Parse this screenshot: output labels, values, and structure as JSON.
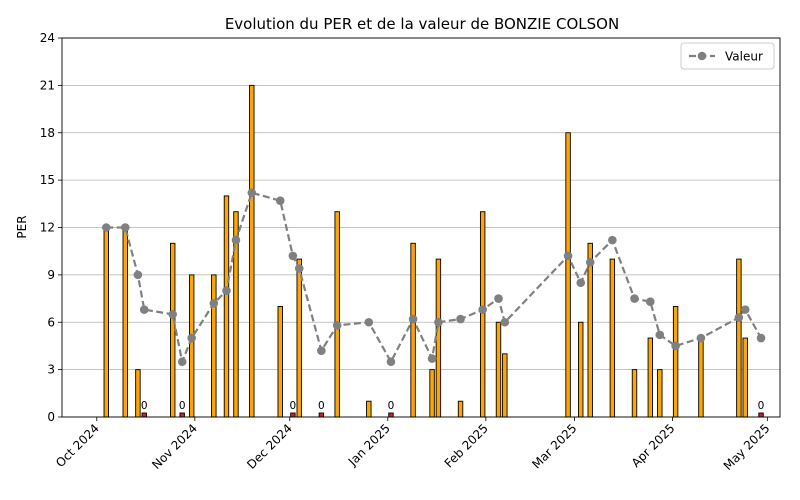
{
  "chart_data": {
    "type": "bar",
    "title": "Evolution du PER et de la valeur de BONZIE COLSON",
    "ylabel": "PER",
    "xlabel": "",
    "ylim": [
      0,
      24
    ],
    "yticks": [
      0,
      3,
      6,
      9,
      12,
      15,
      18,
      21,
      24
    ],
    "xlim": [
      "2024-09-20",
      "2025-05-05"
    ],
    "xticks": [
      {
        "date": "2024-10-01",
        "label": "Oct 2024"
      },
      {
        "date": "2024-11-01",
        "label": "Nov 2024"
      },
      {
        "date": "2024-12-01",
        "label": "Dec 2024"
      },
      {
        "date": "2025-01-01",
        "label": "Jan 2025"
      },
      {
        "date": "2025-02-01",
        "label": "Feb 2025"
      },
      {
        "date": "2025-03-01",
        "label": "Mar 2025"
      },
      {
        "date": "2025-04-01",
        "label": "Apr 2025"
      },
      {
        "date": "2025-05-01",
        "label": "May 2025"
      }
    ],
    "grid": "y",
    "legend_position": "top-right",
    "colors": {
      "bar": "#FFA500",
      "bar_zero": "#CC2222",
      "bar_edge": "#000000",
      "line": "#808080",
      "grid": "#b0b0b0"
    },
    "bars": [
      {
        "date": "2024-10-04",
        "value": 12
      },
      {
        "date": "2024-10-10",
        "value": 12
      },
      {
        "date": "2024-10-14",
        "value": 3
      },
      {
        "date": "2024-10-16",
        "value": 0,
        "label": "0"
      },
      {
        "date": "2024-10-25",
        "value": 11
      },
      {
        "date": "2024-10-28",
        "value": 0,
        "label": "0"
      },
      {
        "date": "2024-10-31",
        "value": 9
      },
      {
        "date": "2024-11-07",
        "value": 9
      },
      {
        "date": "2024-11-11",
        "value": 14
      },
      {
        "date": "2024-11-14",
        "value": 13
      },
      {
        "date": "2024-11-19",
        "value": 21
      },
      {
        "date": "2024-11-28",
        "value": 7
      },
      {
        "date": "2024-12-02",
        "value": 0,
        "label": "0"
      },
      {
        "date": "2024-12-04",
        "value": 10
      },
      {
        "date": "2024-12-11",
        "value": 0,
        "label": "0"
      },
      {
        "date": "2024-12-16",
        "value": 13
      },
      {
        "date": "2024-12-26",
        "value": 1
      },
      {
        "date": "2025-01-02",
        "value": 0,
        "label": "0"
      },
      {
        "date": "2025-01-09",
        "value": 11
      },
      {
        "date": "2025-01-15",
        "value": 3
      },
      {
        "date": "2025-01-17",
        "value": 10
      },
      {
        "date": "2025-01-24",
        "value": 1
      },
      {
        "date": "2025-01-31",
        "value": 13
      },
      {
        "date": "2025-02-05",
        "value": 6
      },
      {
        "date": "2025-02-07",
        "value": 4
      },
      {
        "date": "2025-02-27",
        "value": 18
      },
      {
        "date": "2025-03-03",
        "value": 6
      },
      {
        "date": "2025-03-06",
        "value": 11
      },
      {
        "date": "2025-03-13",
        "value": 10
      },
      {
        "date": "2025-03-20",
        "value": 3
      },
      {
        "date": "2025-03-25",
        "value": 5
      },
      {
        "date": "2025-03-28",
        "value": 3
      },
      {
        "date": "2025-04-02",
        "value": 7
      },
      {
        "date": "2025-04-10",
        "value": 5
      },
      {
        "date": "2025-04-22",
        "value": 10
      },
      {
        "date": "2025-04-24",
        "value": 5
      },
      {
        "date": "2025-04-29",
        "value": 0,
        "label": "0"
      }
    ],
    "series": [
      {
        "name": "Valeur",
        "type": "line",
        "points": [
          {
            "date": "2024-10-04",
            "value": 12.0
          },
          {
            "date": "2024-10-10",
            "value": 12.0
          },
          {
            "date": "2024-10-14",
            "value": 9.0
          },
          {
            "date": "2024-10-16",
            "value": 6.8
          },
          {
            "date": "2024-10-25",
            "value": 6.5
          },
          {
            "date": "2024-10-28",
            "value": 3.5
          },
          {
            "date": "2024-10-31",
            "value": 5.0
          },
          {
            "date": "2024-11-07",
            "value": 7.2
          },
          {
            "date": "2024-11-11",
            "value": 8.0
          },
          {
            "date": "2024-11-14",
            "value": 11.2
          },
          {
            "date": "2024-11-19",
            "value": 14.2
          },
          {
            "date": "2024-11-28",
            "value": 13.7
          },
          {
            "date": "2024-12-02",
            "value": 10.2
          },
          {
            "date": "2024-12-04",
            "value": 9.4
          },
          {
            "date": "2024-12-11",
            "value": 4.2
          },
          {
            "date": "2024-12-16",
            "value": 5.8
          },
          {
            "date": "2024-12-26",
            "value": 6.0
          },
          {
            "date": "2025-01-02",
            "value": 3.5
          },
          {
            "date": "2025-01-09",
            "value": 6.2
          },
          {
            "date": "2025-01-15",
            "value": 3.7
          },
          {
            "date": "2025-01-17",
            "value": 6.0
          },
          {
            "date": "2025-01-24",
            "value": 6.2
          },
          {
            "date": "2025-01-31",
            "value": 6.8
          },
          {
            "date": "2025-02-05",
            "value": 7.5
          },
          {
            "date": "2025-02-07",
            "value": 6.0
          },
          {
            "date": "2025-02-27",
            "value": 10.2
          },
          {
            "date": "2025-03-03",
            "value": 8.5
          },
          {
            "date": "2025-03-06",
            "value": 9.8
          },
          {
            "date": "2025-03-13",
            "value": 11.2
          },
          {
            "date": "2025-03-20",
            "value": 7.5
          },
          {
            "date": "2025-03-25",
            "value": 7.3
          },
          {
            "date": "2025-03-28",
            "value": 5.2
          },
          {
            "date": "2025-04-02",
            "value": 4.5
          },
          {
            "date": "2025-04-10",
            "value": 5.0
          },
          {
            "date": "2025-04-22",
            "value": 6.3
          },
          {
            "date": "2025-04-24",
            "value": 6.8
          },
          {
            "date": "2025-04-29",
            "value": 5.0
          }
        ]
      }
    ]
  }
}
